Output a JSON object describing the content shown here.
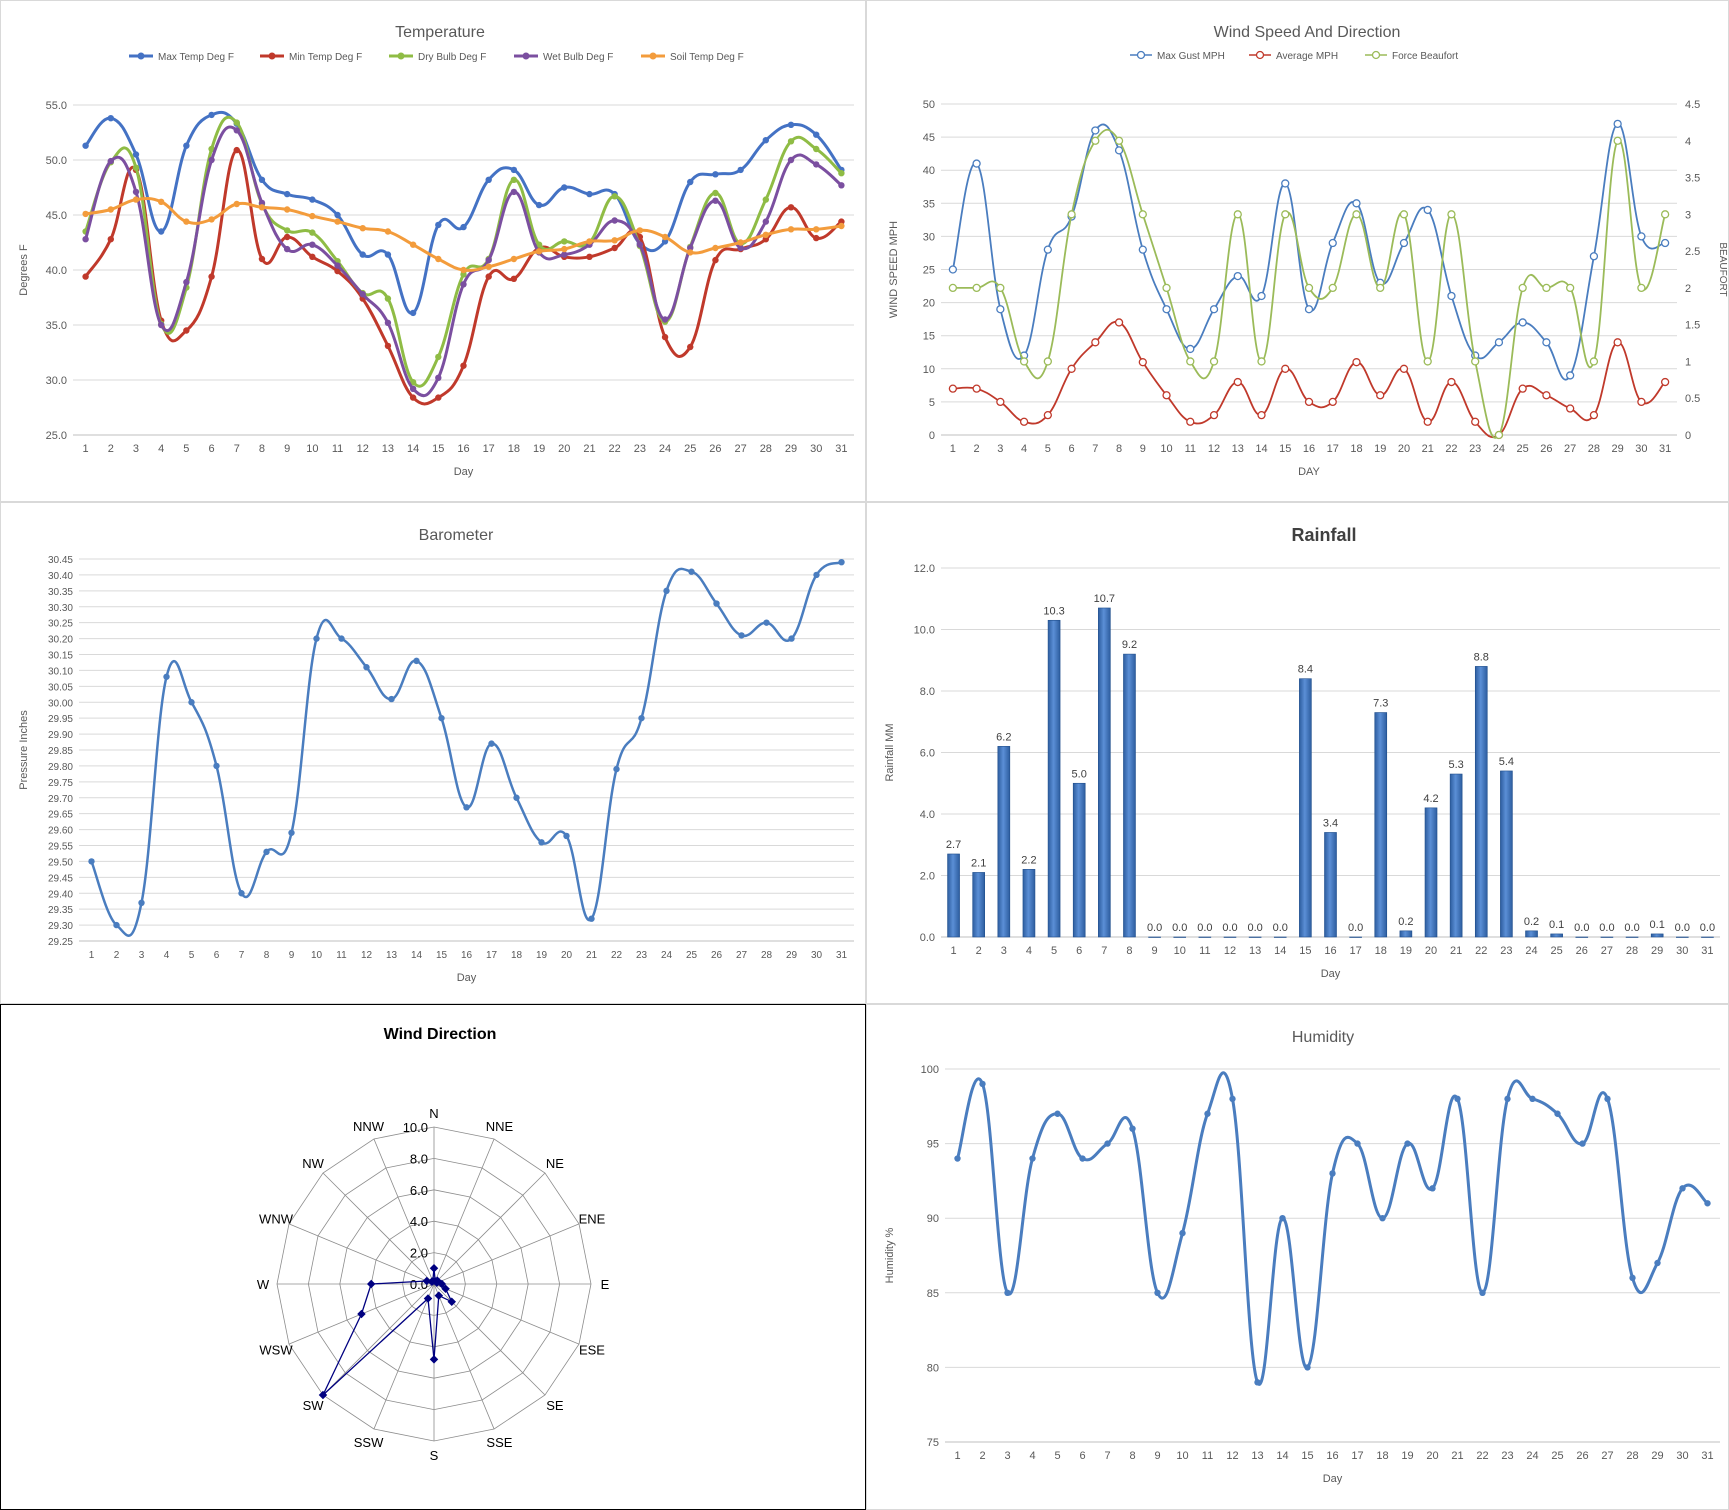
{
  "chart_data": [
    {
      "type": "line",
      "title": "Temperature",
      "xlabel": "Day",
      "ylabel": "Degrees F",
      "x": [
        1,
        2,
        3,
        4,
        5,
        6,
        7,
        8,
        9,
        10,
        11,
        12,
        13,
        14,
        15,
        16,
        17,
        18,
        19,
        20,
        21,
        22,
        23,
        24,
        25,
        26,
        27,
        28,
        29,
        30,
        31
      ],
      "ylim": [
        25.0,
        55.0
      ],
      "yticks": [
        "25.0",
        "30.0",
        "35.0",
        "40.0",
        "45.0",
        "50.0",
        "55.0"
      ],
      "legend": "top",
      "series": [
        {
          "name": "Max Temp Deg F",
          "color": "#4472c4",
          "values": [
            51.3,
            53.8,
            50.5,
            43.5,
            51.3,
            54.1,
            53.3,
            48.2,
            46.9,
            46.4,
            45.0,
            41.4,
            41.4,
            36.1,
            44.1,
            43.9,
            48.2,
            49.1,
            45.9,
            47.5,
            46.9,
            46.9,
            42.4,
            42.6,
            48.0,
            48.7,
            49.1,
            51.8,
            53.2,
            52.3,
            49.1
          ]
        },
        {
          "name": "Min Temp Deg F",
          "color": "#c0392b",
          "values": [
            39.4,
            42.8,
            49.1,
            35.4,
            34.5,
            39.4,
            50.9,
            41.0,
            43.0,
            41.2,
            39.9,
            37.4,
            33.1,
            28.4,
            28.4,
            31.3,
            39.4,
            39.2,
            42.0,
            41.2,
            41.2,
            42.0,
            43.0,
            33.9,
            33.0,
            40.9,
            41.9,
            42.8,
            45.7,
            42.9,
            44.4
          ]
        },
        {
          "name": "Dry Bulb Deg F",
          "color": "#8fbc45",
          "values": [
            43.5,
            49.8,
            49.3,
            35.1,
            38.4,
            51.0,
            53.4,
            46.0,
            43.6,
            43.4,
            40.8,
            37.9,
            37.4,
            29.8,
            32.1,
            39.6,
            41.0,
            48.2,
            42.3,
            42.6,
            42.5,
            46.7,
            42.2,
            35.3,
            42.1,
            47.0,
            42.4,
            46.4,
            51.7,
            51.0,
            48.8
          ]
        },
        {
          "name": "Wet Bulb Deg F",
          "color": "#7b4fa0",
          "values": [
            42.8,
            49.9,
            47.1,
            35.0,
            38.9,
            50.0,
            52.7,
            46.1,
            41.9,
            42.3,
            40.4,
            37.8,
            35.2,
            29.2,
            30.2,
            38.7,
            40.9,
            47.1,
            41.6,
            41.4,
            42.3,
            44.5,
            42.3,
            35.5,
            42.0,
            46.3,
            42.0,
            44.4,
            50.0,
            49.6,
            47.7
          ]
        },
        {
          "name": "Soil Temp Deg F",
          "color": "#f39c3c",
          "values": [
            45.1,
            45.5,
            46.4,
            46.2,
            44.4,
            44.6,
            46.0,
            45.7,
            45.5,
            44.9,
            44.4,
            43.8,
            43.5,
            42.3,
            41.0,
            40.0,
            40.3,
            41.0,
            41.7,
            41.9,
            42.6,
            42.7,
            43.6,
            43.0,
            41.6,
            42.0,
            42.5,
            43.2,
            43.7,
            43.7,
            44.0
          ]
        }
      ]
    },
    {
      "type": "line",
      "title": "Wind Speed And Direction",
      "xlabel": "DAY",
      "ylabel": "WIND SPEED MPH",
      "y2label": "BEAUFORT",
      "x": [
        1,
        2,
        3,
        4,
        5,
        6,
        7,
        8,
        9,
        10,
        11,
        12,
        13,
        14,
        15,
        16,
        17,
        18,
        19,
        20,
        21,
        22,
        23,
        24,
        25,
        26,
        27,
        28,
        29,
        30,
        31
      ],
      "ylim": [
        0,
        50
      ],
      "y2lim": [
        0,
        4.5
      ],
      "yticks": [
        "0",
        "5",
        "10",
        "15",
        "20",
        "25",
        "30",
        "35",
        "40",
        "45",
        "50"
      ],
      "y2ticks": [
        "0",
        "0.5",
        "1",
        "1.5",
        "2",
        "2.5",
        "3",
        "3.5",
        "4",
        "4.5"
      ],
      "legend": "top",
      "series": [
        {
          "name": "Max Gust MPH",
          "color": "#4a7dbf",
          "axis": "left",
          "values": [
            25,
            41,
            19,
            12,
            28,
            33,
            46,
            43,
            28,
            19,
            13,
            19,
            24,
            21,
            38,
            19,
            29,
            35,
            23,
            29,
            34,
            21,
            12,
            14,
            17,
            14,
            9,
            27,
            47,
            30,
            29
          ]
        },
        {
          "name": "Average MPH",
          "color": "#c0392b",
          "axis": "left",
          "values": [
            7,
            7,
            5,
            2,
            3,
            10,
            14,
            17,
            11,
            6,
            2,
            3,
            8,
            3,
            10,
            5,
            5,
            11,
            6,
            10,
            2,
            8,
            2,
            0,
            7,
            6,
            4,
            3,
            14,
            5,
            8
          ]
        },
        {
          "name": "Force Beaufort",
          "color": "#9bbb59",
          "axis": "right",
          "values": [
            2,
            2,
            2,
            1,
            1,
            3,
            4,
            4,
            3,
            2,
            1,
            1,
            3,
            1,
            3,
            2,
            2,
            3,
            2,
            3,
            1,
            3,
            1,
            0,
            2,
            2,
            2,
            1,
            4,
            2,
            3
          ]
        }
      ]
    },
    {
      "type": "line",
      "title": "Barometer",
      "xlabel": "Day",
      "ylabel": "Pressure Inches",
      "x": [
        1,
        2,
        3,
        4,
        5,
        6,
        7,
        8,
        9,
        10,
        11,
        12,
        13,
        14,
        15,
        16,
        17,
        18,
        19,
        20,
        21,
        22,
        23,
        24,
        25,
        26,
        27,
        28,
        29,
        30,
        31
      ],
      "ylim": [
        29.25,
        30.45
      ],
      "yticks": [
        "29.25",
        "29.30",
        "29.35",
        "29.40",
        "29.45",
        "29.50",
        "29.55",
        "29.60",
        "29.65",
        "29.70",
        "29.75",
        "29.80",
        "29.85",
        "29.90",
        "29.95",
        "30.00",
        "30.05",
        "30.10",
        "30.15",
        "30.20",
        "30.25",
        "30.30",
        "30.35",
        "30.40",
        "30.45"
      ],
      "series": [
        {
          "name": "",
          "color": "#4a7dbf",
          "values": [
            29.5,
            29.3,
            29.37,
            30.08,
            30.0,
            29.8,
            29.4,
            29.53,
            29.59,
            30.2,
            30.2,
            30.11,
            30.01,
            30.13,
            29.95,
            29.67,
            29.87,
            29.7,
            29.56,
            29.58,
            29.32,
            29.79,
            29.95,
            30.35,
            30.41,
            30.31,
            30.21,
            30.25,
            30.2,
            30.4,
            30.44
          ]
        }
      ]
    },
    {
      "type": "bar",
      "title": "Rainfall",
      "xlabel": "Day",
      "ylabel": "Rainfall MM",
      "categories": [
        "1",
        "2",
        "3",
        "4",
        "5",
        "6",
        "7",
        "8",
        "9",
        "10",
        "11",
        "12",
        "13",
        "14",
        "15",
        "16",
        "17",
        "18",
        "19",
        "20",
        "21",
        "22",
        "23",
        "24",
        "25",
        "26",
        "27",
        "28",
        "29",
        "30",
        "31"
      ],
      "ylim": [
        0,
        12
      ],
      "yticks": [
        "0.0",
        "2.0",
        "4.0",
        "6.0",
        "8.0",
        "10.0",
        "12.0"
      ],
      "values": [
        2.7,
        2.1,
        6.2,
        2.2,
        10.3,
        5.0,
        10.7,
        9.2,
        0.0,
        0.0,
        0.0,
        0.0,
        0.0,
        0.0,
        8.4,
        3.4,
        0.0,
        7.3,
        0.2,
        4.2,
        5.3,
        8.8,
        5.4,
        0.2,
        0.1,
        0.0,
        0.0,
        0.0,
        0.1,
        0.0,
        0.0
      ],
      "data_labels": [
        "2.7",
        "2.1",
        "6.2",
        "2.2",
        "10.3",
        "5.0",
        "10.7",
        "9.2",
        "0.0",
        "0.0",
        "0.0",
        "0.0",
        "0.0",
        "0.0",
        "8.4",
        "3.4",
        "0.0",
        "7.3",
        "0.2",
        "4.2",
        "5.3",
        "8.8",
        "5.4",
        "0.2",
        "0.1",
        "0.0",
        "0.0",
        "0.0",
        "0.1",
        "0.0",
        "0.0"
      ],
      "color": "#3a6fb5"
    },
    {
      "type": "radar",
      "title": "Wind Direction",
      "categories": [
        "N",
        "NNE",
        "NE",
        "ENE",
        "E",
        "ESE",
        "SE",
        "SSE",
        "S",
        "SSW",
        "SW",
        "WSW",
        "W",
        "WNW",
        "NW",
        "NNW"
      ],
      "rlim": [
        0,
        10
      ],
      "rticks": [
        "0.0",
        "2.0",
        "4.0",
        "6.0",
        "8.0",
        "10.0"
      ],
      "values": [
        1.0,
        0.2,
        0.3,
        0.2,
        0.5,
        0.8,
        1.6,
        0.8,
        4.8,
        1.0,
        10.0,
        5.0,
        4.0,
        0.5,
        0.2,
        0.2
      ],
      "color": "#000080"
    },
    {
      "type": "line",
      "title": "Humidity",
      "xlabel": "Day",
      "ylabel": "Humidity %",
      "x": [
        1,
        2,
        3,
        4,
        5,
        6,
        7,
        8,
        9,
        10,
        11,
        12,
        13,
        14,
        15,
        16,
        17,
        18,
        19,
        20,
        21,
        22,
        23,
        24,
        25,
        26,
        27,
        28,
        29,
        30,
        31
      ],
      "ylim": [
        75,
        100
      ],
      "yticks": [
        "75",
        "80",
        "85",
        "90",
        "95",
        "100"
      ],
      "series": [
        {
          "name": "",
          "color": "#4a7dbf",
          "values": [
            94,
            99,
            85,
            94,
            97,
            94,
            95,
            96,
            85,
            89,
            97,
            98,
            79,
            90,
            80,
            93,
            95,
            90,
            95,
            92,
            98,
            85,
            98,
            98,
            97,
            95,
            98,
            86,
            87,
            92,
            91
          ]
        }
      ]
    }
  ]
}
